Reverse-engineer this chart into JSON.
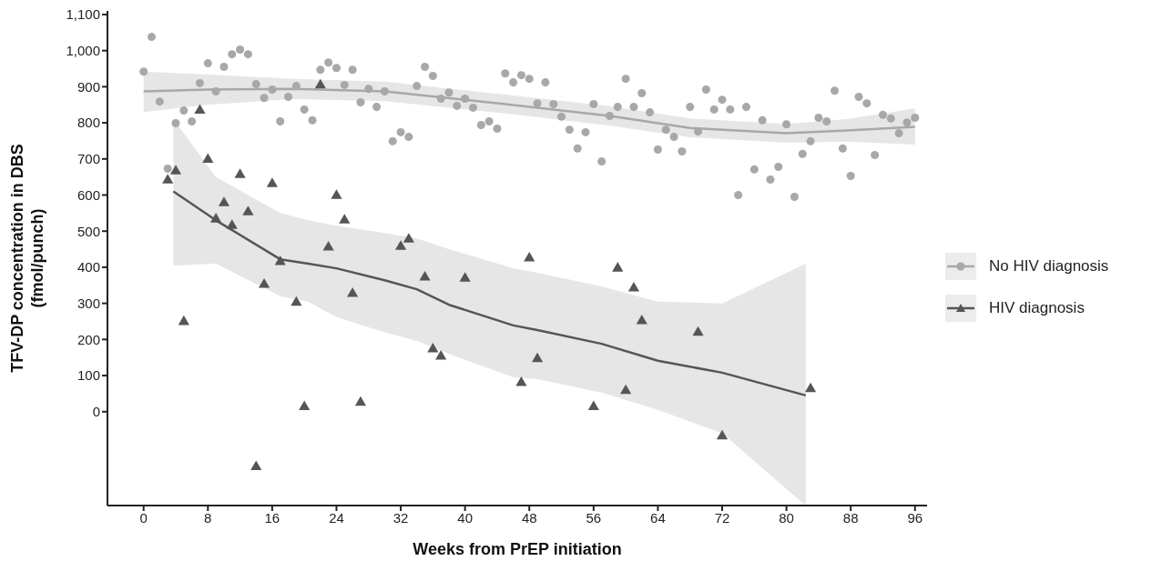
{
  "chart_data": {
    "type": "scatter",
    "xlabel": "Weeks from PrEP initiation",
    "ylabel": "TFV-DP concentration in DBS\n(fmol/punch)",
    "xlim": [
      -4.5,
      97.5
    ],
    "xticks": [
      0,
      8,
      16,
      24,
      32,
      40,
      48,
      56,
      64,
      72,
      80,
      88,
      96
    ],
    "ylim": [
      -260,
      1110
    ],
    "yticks": [
      0,
      100,
      200,
      300,
      400,
      500,
      600,
      700,
      800,
      900,
      {
        "value": 1000,
        "label": "1,000"
      },
      {
        "value": 1100,
        "label": "1,100"
      }
    ],
    "grid": false,
    "legend": "right",
    "series": [
      {
        "name": "No HIV diagnosis",
        "marker": "circle",
        "color": "#a8a8a8",
        "x": [
          0,
          1,
          2,
          3,
          4,
          5,
          6,
          7,
          8,
          9,
          10,
          11,
          12,
          13,
          14,
          15,
          16,
          17,
          18,
          19,
          20,
          21,
          22,
          23,
          24,
          25,
          26,
          27,
          28,
          29,
          30,
          31,
          32,
          33,
          34,
          35,
          36,
          37,
          38,
          39,
          40,
          41,
          42,
          43,
          44,
          45,
          46,
          47,
          48,
          49,
          50,
          51,
          52,
          53,
          54,
          55,
          56,
          57,
          58,
          59,
          60,
          61,
          62,
          63,
          64,
          65,
          66,
          67,
          68,
          69,
          70,
          71,
          72,
          73,
          74,
          75,
          76,
          77,
          78,
          79,
          80,
          81,
          82,
          83,
          84,
          85,
          86,
          87,
          88,
          89,
          90,
          91,
          92,
          93,
          94,
          95,
          96
        ],
        "values": [
          942,
          1038,
          859,
          673,
          799,
          834,
          804,
          910,
          965,
          887,
          955,
          990,
          1003,
          990,
          907,
          869,
          892,
          804,
          872,
          902,
          837,
          807,
          947,
          967,
          952,
          905,
          947,
          857,
          894,
          844,
          887,
          749,
          774,
          761,
          902,
          955,
          930,
          867,
          884,
          847,
          867,
          842,
          794,
          804,
          784,
          937,
          912,
          932,
          922,
          854,
          912,
          852,
          817,
          781,
          729,
          774,
          852,
          693,
          819,
          844,
          922,
          844,
          882,
          829,
          726,
          781,
          761,
          721,
          844,
          776,
          892,
          837,
          864,
          837,
          600,
          844,
          671,
          807,
          643,
          678,
          796,
          595,
          714,
          749,
          814,
          804,
          889,
          729,
          653,
          872,
          854,
          711,
          822,
          812,
          771,
          801,
          814
        ]
      },
      {
        "type": "line",
        "marker": "none",
        "color": "#a8a8a8",
        "x": [
          0,
          8,
          18.6,
          30,
          45,
          58,
          68,
          80,
          87.5,
          96
        ],
        "values": [
          887,
          892,
          894,
          887,
          852,
          819,
          786,
          771,
          779,
          789
        ],
        "lower": [
          830,
          850,
          866,
          860,
          826,
          792,
          760,
          745,
          748,
          740
        ],
        "upper": [
          942,
          934,
          922,
          914,
          878,
          846,
          812,
          797,
          810,
          840
        ]
      },
      {
        "name": "HIV diagnosis",
        "marker": "triangle",
        "color": "#555555",
        "x": [
          3,
          4,
          5,
          7,
          8,
          9,
          10,
          11,
          12,
          13,
          14,
          15,
          16,
          17,
          19,
          20,
          22,
          23,
          24,
          25,
          26,
          27,
          32,
          33,
          35,
          36,
          37,
          40,
          47,
          48,
          49,
          56,
          59,
          60,
          61,
          62,
          69,
          72,
          83
        ],
        "values": [
          641,
          666,
          249,
          834,
          698,
          533,
          578,
          515,
          656,
          553,
          -153,
          352,
          631,
          415,
          302,
          13,
          904,
          455,
          598,
          530,
          327,
          25,
          457,
          477,
          372,
          173,
          153,
          369,
          80,
          425,
          146,
          13,
          397,
          58,
          342,
          251,
          219,
          -68,
          63
        ]
      },
      {
        "type": "line",
        "marker": "none",
        "color": "#555555",
        "x": [
          3.7,
          9,
          17,
          20.5,
          24,
          30,
          34,
          38,
          46,
          49,
          57,
          64,
          72,
          82.4
        ],
        "values": [
          610,
          530,
          422,
          410,
          397,
          364,
          339,
          296,
          239,
          226,
          188,
          141,
          108,
          45
        ],
        "lower": [
          405,
          410,
          320,
          304,
          262,
          220,
          196,
          160,
          95,
          90,
          53,
          5,
          -60,
          -260
        ],
        "upper": [
          811,
          650,
          550,
          530,
          515,
          495,
          480,
          450,
          397,
          385,
          347,
          305,
          300,
          410
        ]
      }
    ]
  }
}
